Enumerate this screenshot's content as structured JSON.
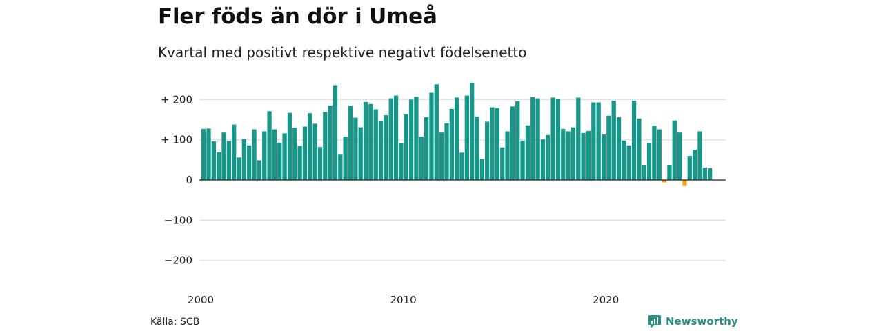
{
  "title": "Fler föds än dör i Umeå",
  "subtitle": "Kvartal med positivt respektive negativt födelsenetto",
  "source": "Källa: SCB",
  "brand": "Newsworthy",
  "colors": {
    "positive": "#16978a",
    "negative": "#f4a11d",
    "grid": "#e2e2e2",
    "axis": "#222222",
    "brand": "#2a8f84"
  },
  "chart_data": {
    "type": "bar",
    "title": "Fler föds än dör i Umeå",
    "subtitle": "Kvartal med positivt respektive negativt födelsenetto",
    "xlabel": "",
    "ylabel": "",
    "ylim": [
      -250,
      250
    ],
    "yticks": [
      200,
      100,
      0,
      -100,
      -200
    ],
    "ytick_labels": [
      "+ 200",
      "+ 100",
      "0",
      "−100",
      "−200"
    ],
    "xticks": [
      2000,
      2010,
      2020
    ],
    "xtick_labels": [
      "2000",
      "2010",
      "2020"
    ],
    "x_start": "2000-Q1",
    "frequency": "quarterly",
    "grid": true,
    "values": [
      127,
      128,
      96,
      69,
      118,
      97,
      138,
      56,
      102,
      86,
      126,
      49,
      121,
      171,
      126,
      93,
      116,
      167,
      130,
      85,
      133,
      166,
      140,
      82,
      169,
      185,
      236,
      63,
      108,
      185,
      155,
      131,
      194,
      189,
      176,
      146,
      161,
      203,
      210,
      91,
      163,
      200,
      207,
      108,
      156,
      217,
      238,
      118,
      141,
      177,
      205,
      68,
      210,
      242,
      158,
      52,
      145,
      181,
      179,
      81,
      121,
      183,
      196,
      98,
      136,
      206,
      203,
      101,
      112,
      205,
      201,
      127,
      121,
      131,
      205,
      117,
      122,
      193,
      193,
      113,
      160,
      197,
      156,
      98,
      86,
      197,
      153,
      36,
      92,
      135,
      126,
      -6,
      36,
      148,
      118,
      -15,
      60,
      75,
      121,
      31,
      29
    ]
  }
}
